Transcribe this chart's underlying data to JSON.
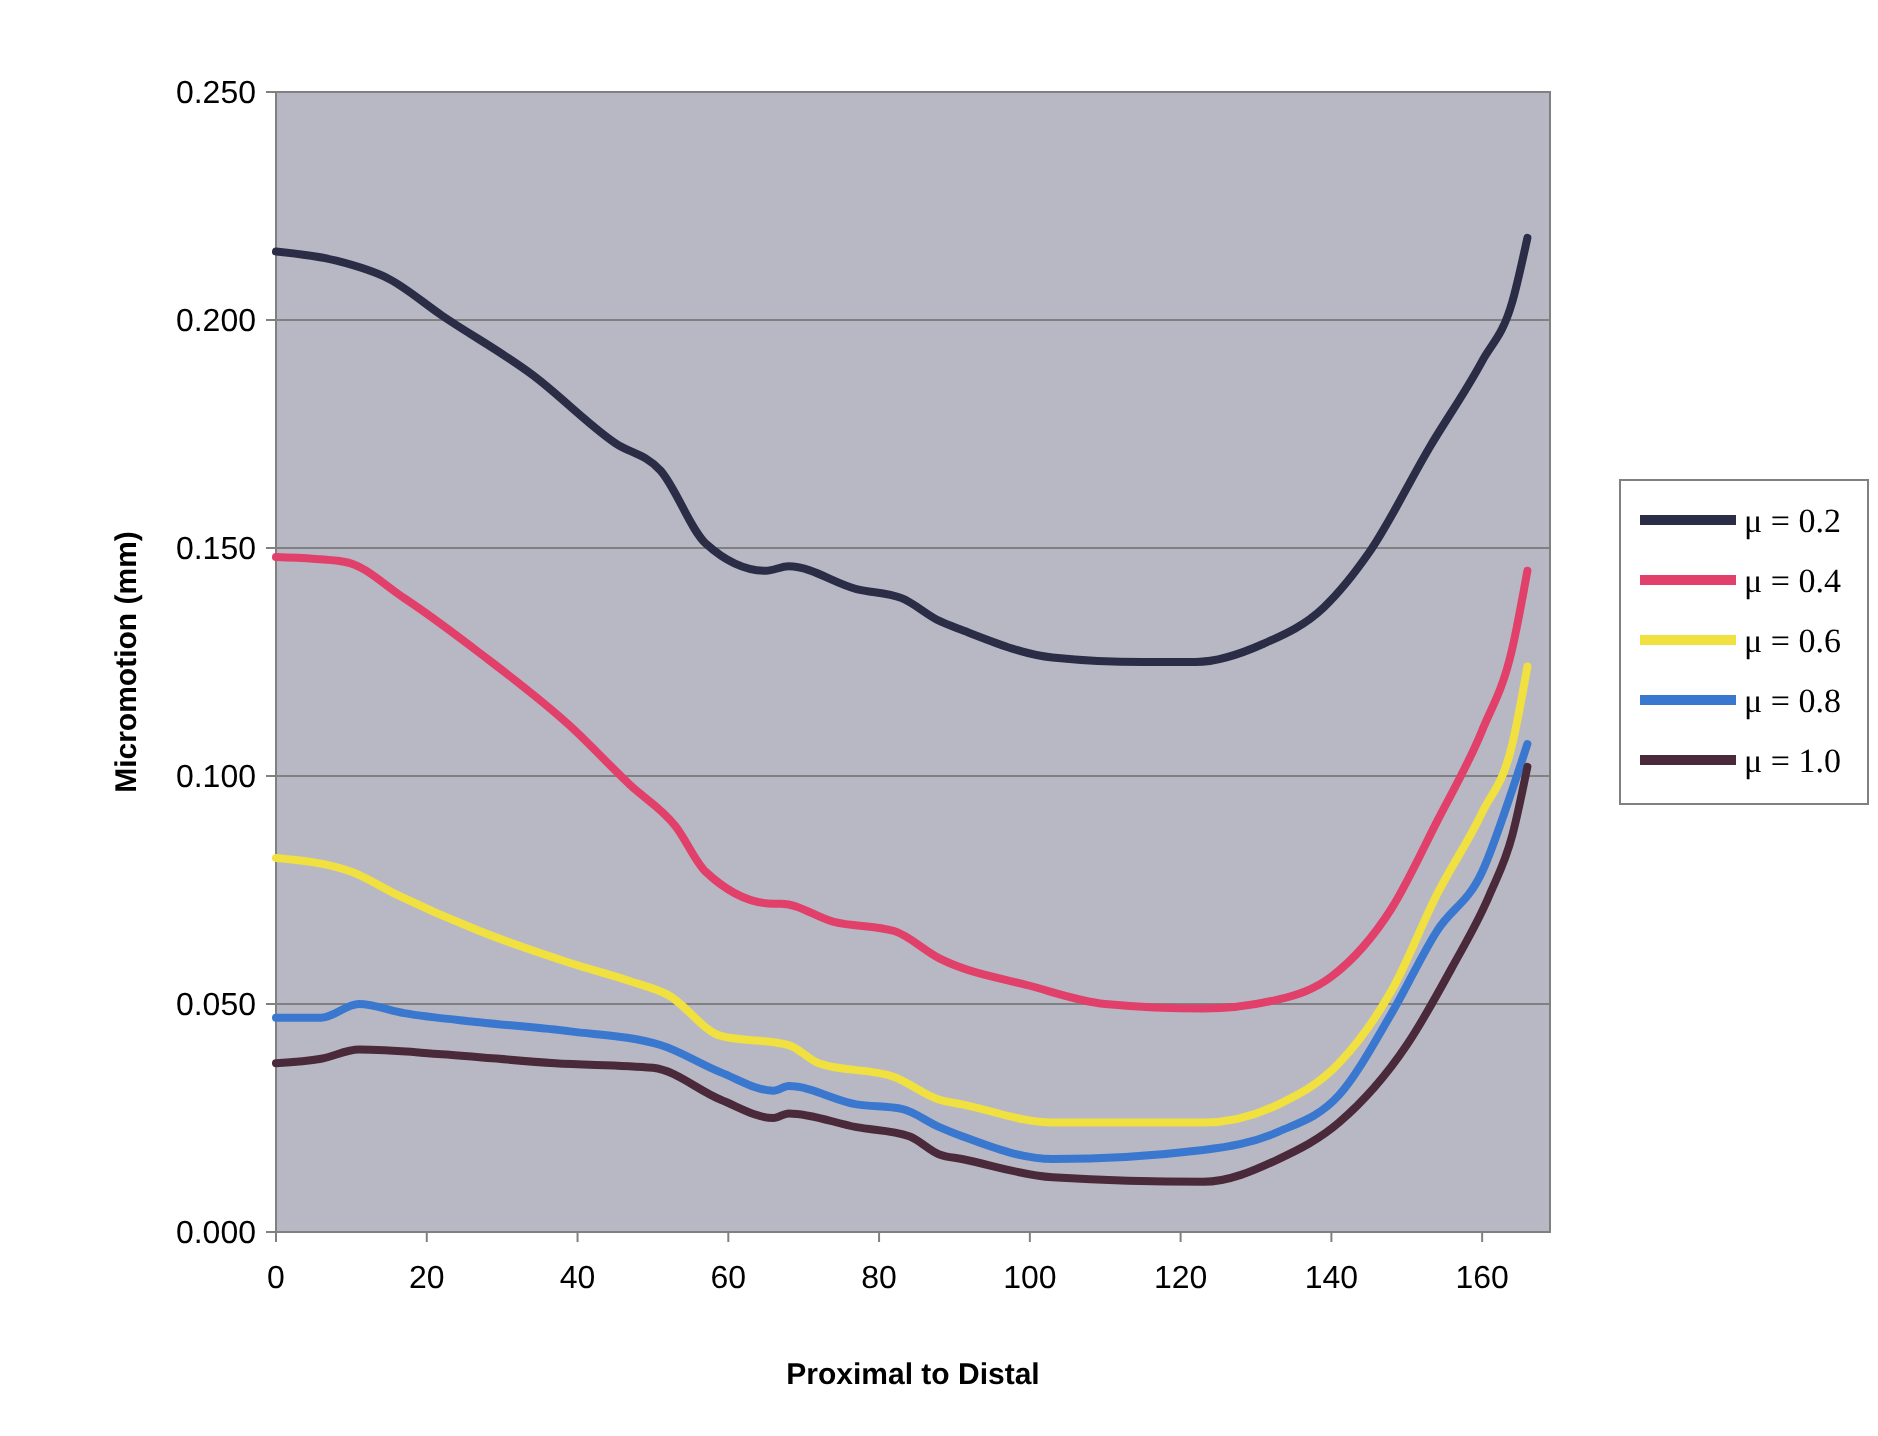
{
  "chart_data": {
    "type": "line",
    "xlabel": "Proximal to Distal",
    "ylabel": "Micromotion (mm)",
    "xlim": [
      0,
      169
    ],
    "xticks": [
      0,
      20,
      40,
      60,
      80,
      100,
      120,
      140,
      160
    ],
    "ylim": [
      0,
      0.25
    ],
    "yticks": [
      {
        "value": 0,
        "label": "0.000"
      },
      {
        "value": 0.05,
        "label": "0.050"
      },
      {
        "value": 0.1,
        "label": "0.100"
      },
      {
        "value": 0.15,
        "label": "0.150"
      },
      {
        "value": 0.2,
        "label": "0.200"
      },
      {
        "value": 0.25,
        "label": "0.250"
      }
    ],
    "grid": "y",
    "legend": "right",
    "marker": "none",
    "line_style": "solid",
    "series": [
      {
        "name": "μ = 0.2",
        "color": "#2a2d45",
        "x": [
          0,
          8,
          15,
          22,
          34,
          45,
          51,
          57,
          65,
          68,
          77,
          83,
          88,
          91,
          103,
          115,
          122,
          131,
          139,
          145,
          153,
          160,
          164,
          166
        ],
        "values": [
          0.215,
          0.213,
          0.209,
          0.201,
          0.188,
          0.173,
          0.167,
          0.151,
          0.145,
          0.146,
          0.141,
          0.139,
          0.134,
          0.132,
          0.126,
          0.125,
          0.125,
          0.129,
          0.137,
          0.149,
          0.172,
          0.191,
          0.204,
          0.218
        ]
      },
      {
        "name": "μ = 0.4",
        "color": "#e0406a",
        "x": [
          0,
          9,
          17,
          27,
          39,
          47,
          53,
          57,
          66,
          67,
          74,
          82,
          88,
          100,
          110,
          123,
          133,
          140,
          148,
          154,
          160,
          164,
          166
        ],
        "values": [
          0.148,
          0.147,
          0.139,
          0.127,
          0.111,
          0.098,
          0.089,
          0.079,
          0.072,
          0.072,
          0.068,
          0.066,
          0.06,
          0.054,
          0.05,
          0.049,
          0.051,
          0.056,
          0.071,
          0.09,
          0.11,
          0.128,
          0.145
        ]
      },
      {
        "name": "μ = 0.6",
        "color": "#f0e040",
        "x": [
          0,
          10,
          16,
          27,
          39,
          47,
          52,
          59,
          68,
          72,
          82,
          88,
          91,
          103,
          123,
          133,
          141,
          148,
          154,
          160,
          164,
          166
        ],
        "values": [
          0.082,
          0.079,
          0.074,
          0.066,
          0.059,
          0.055,
          0.052,
          0.043,
          0.041,
          0.037,
          0.034,
          0.029,
          0.028,
          0.024,
          0.024,
          0.028,
          0.037,
          0.053,
          0.074,
          0.092,
          0.107,
          0.124
        ]
      },
      {
        "name": "μ = 0.8",
        "color": "#3a78d0",
        "x": [
          0,
          6,
          11,
          17,
          27,
          39,
          51,
          59,
          66,
          68,
          77,
          83,
          88,
          91,
          103,
          123,
          133,
          141,
          148,
          154,
          160,
          164,
          166
        ],
        "values": [
          0.047,
          0.047,
          0.05,
          0.048,
          0.046,
          0.044,
          0.041,
          0.035,
          0.031,
          0.032,
          0.028,
          0.027,
          0.023,
          0.021,
          0.016,
          0.018,
          0.022,
          0.03,
          0.048,
          0.066,
          0.079,
          0.097,
          0.107
        ]
      },
      {
        "name": "μ = 1.0",
        "color": "#4a2a3a",
        "x": [
          0,
          6,
          11,
          22,
          37,
          50,
          59,
          66,
          68,
          77,
          84,
          88,
          91,
          103,
          123,
          133,
          141,
          150,
          156,
          161,
          164,
          166
        ],
        "values": [
          0.037,
          0.038,
          0.04,
          0.039,
          0.037,
          0.036,
          0.029,
          0.025,
          0.026,
          0.023,
          0.021,
          0.017,
          0.016,
          0.012,
          0.011,
          0.016,
          0.024,
          0.041,
          0.058,
          0.074,
          0.087,
          0.102
        ]
      }
    ]
  }
}
